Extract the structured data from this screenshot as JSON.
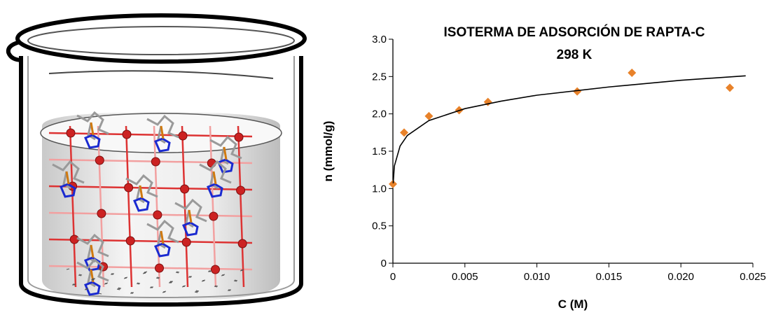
{
  "chart_data": {
    "type": "scatter",
    "title": "ISOTERMA DE ADSORCIÓN DE RAPTA-C",
    "subtitle": "298 K",
    "x_label": "C (M)",
    "y_label": "n (mmol/g)",
    "xlim": [
      0,
      0.025
    ],
    "ylim": [
      0,
      3.0
    ],
    "xticks": [
      0,
      0.005,
      {
        "value": 0.01,
        "label": "0.010"
      },
      0.015,
      {
        "value": 0.02,
        "label": "0.020"
      },
      0.025
    ],
    "yticks": [
      0,
      0.5,
      {
        "value": 1,
        "label": "1.0"
      },
      1.5,
      {
        "value": 2,
        "label": "2.0"
      },
      2.5,
      {
        "value": 3,
        "label": "3.0"
      }
    ],
    "grid": false,
    "series": [
      {
        "color": "#e8822a",
        "marker": "diamond",
        "x": [
          0,
          0.00078,
          0.0025,
          0.0046,
          0.0066,
          0.0128,
          0.0166,
          0.0234
        ],
        "values": [
          1.06,
          1.75,
          1.97,
          2.05,
          2.16,
          2.3,
          2.55,
          2.35
        ]
      },
      {
        "color": "#000000",
        "marker": "line",
        "x": [
          2e-05,
          0.0001,
          0.0005,
          0.001,
          0.0025,
          0.005,
          0.0075,
          0.01,
          0.015,
          0.02,
          0.0245
        ],
        "values": [
          1.07,
          1.3,
          1.57,
          1.71,
          1.91,
          2.07,
          2.17,
          2.25,
          2.36,
          2.45,
          2.51
        ]
      }
    ]
  }
}
